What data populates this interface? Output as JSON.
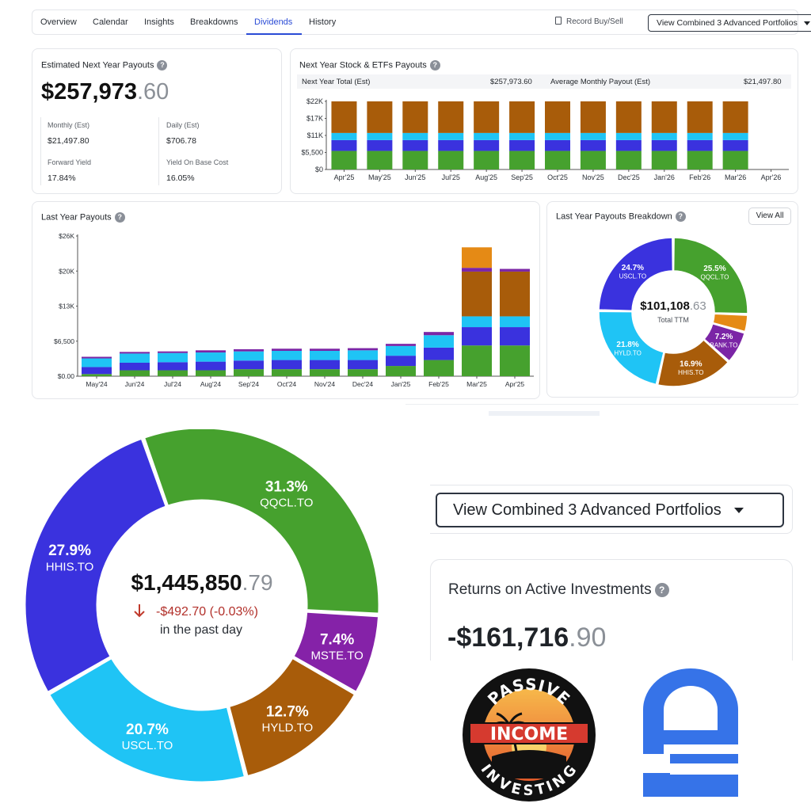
{
  "nav": {
    "tabs": [
      {
        "label": "Overview"
      },
      {
        "label": "Calendar"
      },
      {
        "label": "Insights"
      },
      {
        "label": "Breakdowns"
      },
      {
        "label": "Dividends"
      },
      {
        "label": "History"
      }
    ],
    "active_tab": "Dividends",
    "record_label": "Record Buy/Sell",
    "portfolio_select": "View Combined 3 Advanced Portfolios"
  },
  "estimated": {
    "title": "Estimated Next Year Payouts",
    "amount_main": "$257,973",
    "amount_cents": ".60",
    "monthly_label": "Monthly (Est)",
    "monthly_value": "$21,497.80",
    "daily_label": "Daily (Est)",
    "daily_value": "$706.78",
    "forward_yield_label": "Forward Yield",
    "forward_yield_value": "17.84%",
    "yield_base_label": "Yield On Base Cost",
    "yield_base_value": "16.05%"
  },
  "next_year_chart": {
    "title": "Next Year Stock & ETFs Payouts",
    "total_label": "Next Year Total (Est)",
    "total_value": "$257,973.60",
    "avg_label": "Average Monthly Payout (Est)",
    "avg_value": "$21,497.80"
  },
  "last_year_chart": {
    "title": "Last Year Payouts"
  },
  "breakdown": {
    "title": "Last Year Payouts Breakdown",
    "view_all": "View All",
    "center_main": "$101,108",
    "center_cents": ".63",
    "center_label": "Total TTM",
    "slices": [
      {
        "pct": "25.5%",
        "ticker": "QQCL.TO",
        "value": 25.5,
        "color": "#46a12e"
      },
      {
        "pct": "",
        "ticker": "",
        "value": 3.9,
        "color": "#e58a15"
      },
      {
        "pct": "7.2%",
        "ticker": "BANK.TO",
        "value": 7.2,
        "color": "#7b25a6"
      },
      {
        "pct": "16.9%",
        "ticker": "HHIS.TO",
        "value": 16.9,
        "color": "#a85c0a"
      },
      {
        "pct": "21.8%",
        "ticker": "HYLD.TO",
        "value": 21.8,
        "color": "#1fc4f5"
      },
      {
        "pct": "24.7%",
        "ticker": "USCL.TO",
        "value": 24.7,
        "color": "#3a32de"
      }
    ]
  },
  "holdings": {
    "center_main": "$1,445,850",
    "center_cents": ".79",
    "change_text": "-$492.70 (-0.03%)",
    "change_sub": "in the past day",
    "slices": [
      {
        "pct": "31.3%",
        "ticker": "QQCL.TO",
        "value": 31.3,
        "color": "#46a12e"
      },
      {
        "pct": "7.4%",
        "ticker": "MSTE.TO",
        "value": 7.4,
        "color": "#8522a8"
      },
      {
        "pct": "12.7%",
        "ticker": "HYLD.TO",
        "value": 12.7,
        "color": "#a85c0a"
      },
      {
        "pct": "20.7%",
        "ticker": "USCL.TO",
        "value": 20.7,
        "color": "#1fc4f5"
      },
      {
        "pct": "27.9%",
        "ticker": "HHIS.TO",
        "value": 27.9,
        "color": "#3a32de"
      }
    ]
  },
  "portfolio_select_large": "View Combined 3 Advanced Portfolios",
  "returns": {
    "title": "Returns on Active Investments",
    "amount_main": "-$161,716",
    "amount_cents": ".90"
  },
  "logos": {
    "pii_top": "PASSIVE",
    "pii_middle": "INCOME",
    "pii_bottom": "INVESTING"
  },
  "chart_data": [
    {
      "type": "bar",
      "title": "Next Year Stock & ETFs Payouts",
      "categories": [
        "Apr'25",
        "May'25",
        "Jun'25",
        "Jul'25",
        "Aug'25",
        "Sep'25",
        "Oct'25",
        "Nov'25",
        "Dec'25",
        "Jan'26",
        "Feb'26",
        "Mar'26",
        "Apr'26"
      ],
      "yticks": [
        "$0",
        "$5,500",
        "$11K",
        "$17K",
        "$22K"
      ],
      "ylim": [
        0,
        22000
      ],
      "stacked": true,
      "series": [
        {
          "color": "#46a12e",
          "values": [
            6000,
            6000,
            6000,
            6000,
            6000,
            6000,
            6000,
            6000,
            6000,
            6000,
            6000,
            6000,
            0
          ]
        },
        {
          "color": "#3a32de",
          "values": [
            3500,
            3500,
            3500,
            3500,
            3500,
            3500,
            3500,
            3500,
            3500,
            3500,
            3500,
            3500,
            0
          ]
        },
        {
          "color": "#1fc4f5",
          "values": [
            2300,
            2300,
            2300,
            2300,
            2300,
            2300,
            2300,
            2300,
            2300,
            2300,
            2300,
            2300,
            0
          ]
        },
        {
          "color": "#a85c0a",
          "values": [
            10200,
            10200,
            10200,
            10200,
            10200,
            10200,
            10200,
            10200,
            10200,
            10200,
            10200,
            10200,
            0
          ]
        }
      ]
    },
    {
      "type": "bar",
      "title": "Last Year Payouts",
      "categories": [
        "May'24",
        "Jun'24",
        "Jul'24",
        "Aug'24",
        "Sep'24",
        "Oct'24",
        "Nov'24",
        "Dec'24",
        "Jan'25",
        "Feb'25",
        "Mar'25",
        "Apr'25"
      ],
      "yticks": [
        "$0.00",
        "$6,500",
        "$13K",
        "$20K",
        "$26K"
      ],
      "ylim": [
        0,
        26000
      ],
      "stacked": true,
      "series": [
        {
          "color": "#46a12e",
          "values": [
            400,
            1100,
            1100,
            1100,
            1300,
            1300,
            1300,
            1300,
            1900,
            3000,
            5700,
            5700
          ]
        },
        {
          "color": "#3a32de",
          "values": [
            1300,
            1400,
            1500,
            1600,
            1600,
            1700,
            1700,
            1700,
            1900,
            2300,
            3400,
            3400
          ]
        },
        {
          "color": "#1fc4f5",
          "values": [
            1600,
            1700,
            1700,
            1700,
            1700,
            1700,
            1700,
            1800,
            1800,
            2300,
            2000,
            2000
          ]
        },
        {
          "color": "#a85c0a",
          "values": [
            0,
            0,
            0,
            0,
            0,
            0,
            0,
            0,
            0,
            0,
            8300,
            8300
          ]
        },
        {
          "color": "#7b25a6",
          "values": [
            300,
            300,
            300,
            400,
            400,
            400,
            400,
            400,
            400,
            600,
            700,
            500
          ]
        },
        {
          "color": "#e58a15",
          "values": [
            0,
            0,
            0,
            0,
            0,
            0,
            0,
            0,
            0,
            0,
            3800,
            0
          ]
        }
      ]
    }
  ]
}
